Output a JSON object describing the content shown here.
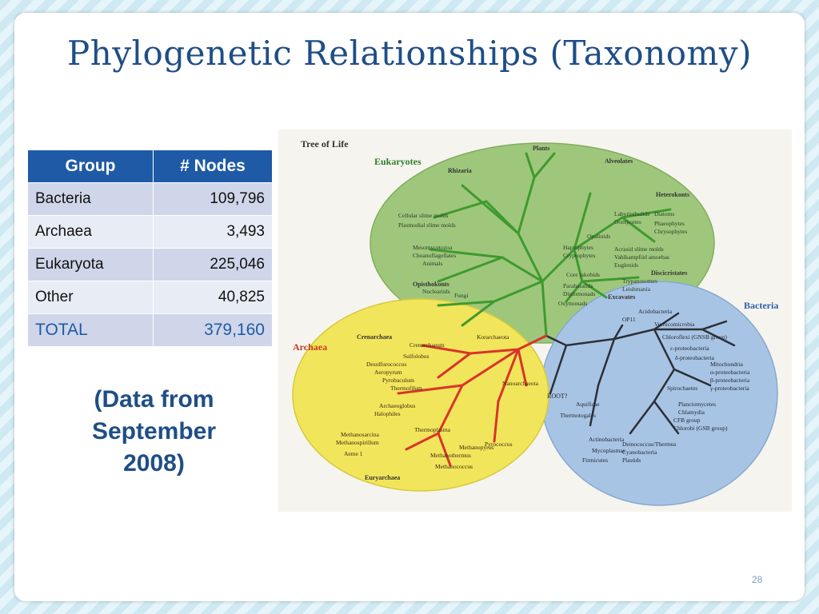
{
  "slide": {
    "title": "Phylogenetic Relationships (Taxonomy)",
    "page_number": "28",
    "note": "(Data from September 2008)"
  },
  "table": {
    "headers": [
      "Group",
      "# Nodes"
    ],
    "rows": [
      {
        "group": "Bacteria",
        "nodes": "109,796"
      },
      {
        "group": "Archaea",
        "nodes": "3,493"
      },
      {
        "group": "Eukaryota",
        "nodes": "225,046"
      },
      {
        "group": "Other",
        "nodes": "40,825"
      }
    ],
    "total": {
      "group": "TOTAL",
      "nodes": "379,160"
    }
  },
  "figure": {
    "title": "Tree of Life",
    "domains": [
      "Eukaryotes",
      "Bacteria",
      "Archaea"
    ],
    "groups": {
      "eukaryotes": [
        "Plants",
        "Alveolates",
        "Rhizaria",
        "Heterokonts",
        "Discicristates",
        "Excavates",
        "Opisthokonts"
      ],
      "archaea": [
        "Crenarchaea",
        "Euryarchaea"
      ],
      "bacteria": [
        "ROOT?"
      ]
    },
    "eukaryote_leaves": [
      "Cellular slime molds",
      "Plasmodial slime molds",
      "Mesomycetozoa",
      "Choanoflagellates",
      "Animals",
      "Nucleariids",
      "Fungi",
      "Labyrinthulids",
      "Oomycetes",
      "Diatoms",
      "Phaeophytes",
      "Chrysophytes",
      "Opalinids",
      "Haptophytes",
      "Cryptophytes",
      "Acrasid slime molds",
      "Vahlkampfiid amoebas",
      "Euglenids",
      "Trypanosomes",
      "Leishmania",
      "Core jakobids",
      "Parabasalids",
      "Diplomonads",
      "Oxymonads"
    ],
    "archaea_leaves": [
      "Crenarchaeum",
      "Sulfolobus",
      "Desulfurococcus",
      "Aeropyrum",
      "Pyrobaculum",
      "Thermofilum",
      "Korarchaeota",
      "Nanoarchaeota",
      "Archaeoglobus",
      "Halophiles",
      "Methanosarcina",
      "Methanospirillum",
      "Aeme 1",
      "Thermoplasma",
      "Methanothermus",
      "Methanococcus",
      "Methanopyrus",
      "Pyrococcus"
    ],
    "bacteria_leaves": [
      "OP11",
      "Acidobacteria",
      "Verrucomicrobia",
      "Chloroflexi (GNSB group)",
      "ε-proteobacteria",
      "δ-proteobacteria",
      "Mitochondria",
      "α-proteobacteria",
      "β-proteobacteria",
      "γ-proteobacteria",
      "Spirochaetes",
      "Planctomycetes",
      "Chlamydia",
      "CFB group",
      "Chlorobi (GSB group)",
      "Deinococcus/Thermus",
      "Cyanobacteria",
      "Plastids",
      "Actinobacteria",
      "Mycoplasmas",
      "Firmicutes",
      "Thermotogales",
      "Aquificae"
    ],
    "colors": {
      "eukaryote_fill": "#9fc77c",
      "eukaryote_branch": "#3f9a2f",
      "bacteria_fill": "#a8c4e4",
      "bacteria_branch": "#2b2f36",
      "archaea_fill": "#f1e55b",
      "archaea_branch": "#d9342b",
      "label_green": "#2f7d2a",
      "label_blue": "#2a5ea8",
      "label_red": "#c43a1e"
    }
  }
}
